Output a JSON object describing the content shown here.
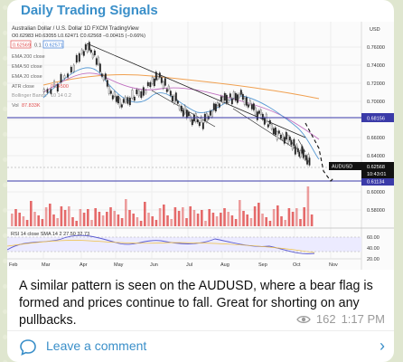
{
  "channel": {
    "name": "Daily Trading Signals"
  },
  "chart": {
    "title_line": "Australian Dollar / U.S. Dollar  1D  FXCM  TradingView",
    "ohlc_line": "O0.62983 H0.63055 L0.62471 C0.62568 −0.00415 (−0.66%)",
    "bid": "0.62569",
    "spread": "0.1",
    "ask": "0.62571",
    "indicators": [
      "EMA 200 close",
      "EMA 50 close",
      "EMA 20 close",
      "ATR close",
      "Bollinger Bands",
      "Vol 87.833K"
    ],
    "atr_value": "0.64500",
    "bb_value": "10 14 0.2",
    "vol_label": "Vol",
    "vol_value": "87.833K",
    "currency": "USD",
    "symbol_badge": "AUDUSD",
    "price_badge": "0.62568",
    "time_badge": "10:43:01",
    "level_upper": "0.68156",
    "level_lower": "0.61134",
    "price_ticks": [
      "0.76000",
      "0.74000",
      "0.72000",
      "0.70000",
      "0.66000",
      "0.64000",
      "0.60000",
      "0.58000"
    ],
    "rsi_label": "RSI 14 close SMA 14 2  27.50  32.73",
    "rsi_ticks": [
      "60.00",
      "40.00",
      "20.00"
    ],
    "months": [
      "Feb",
      "Mar",
      "Apr",
      "May",
      "Jun",
      "Jul",
      "Aug",
      "Sep",
      "Oct",
      "Nov"
    ],
    "colors": {
      "up": "#e9e9e9",
      "down": "#222222",
      "ema200": "#f0a050",
      "ema50": "#c070c0",
      "ema20": "#5a9bd4",
      "level": "#3a3aa8",
      "volume": "#e05050",
      "rsi": "#5a5ad0"
    }
  },
  "message": {
    "text": "A similar pattern is seen on the AUDUSD, where a bear flag is formed and prices continue to fall. Great for shorting on any pullbacks.",
    "views": "162",
    "time": "1:17 PM"
  },
  "comments": {
    "label": "Leave a comment"
  },
  "icons": {
    "eye": "eye-icon",
    "comment": "comment-bubble-icon",
    "chevron": "chevron-right-icon"
  }
}
